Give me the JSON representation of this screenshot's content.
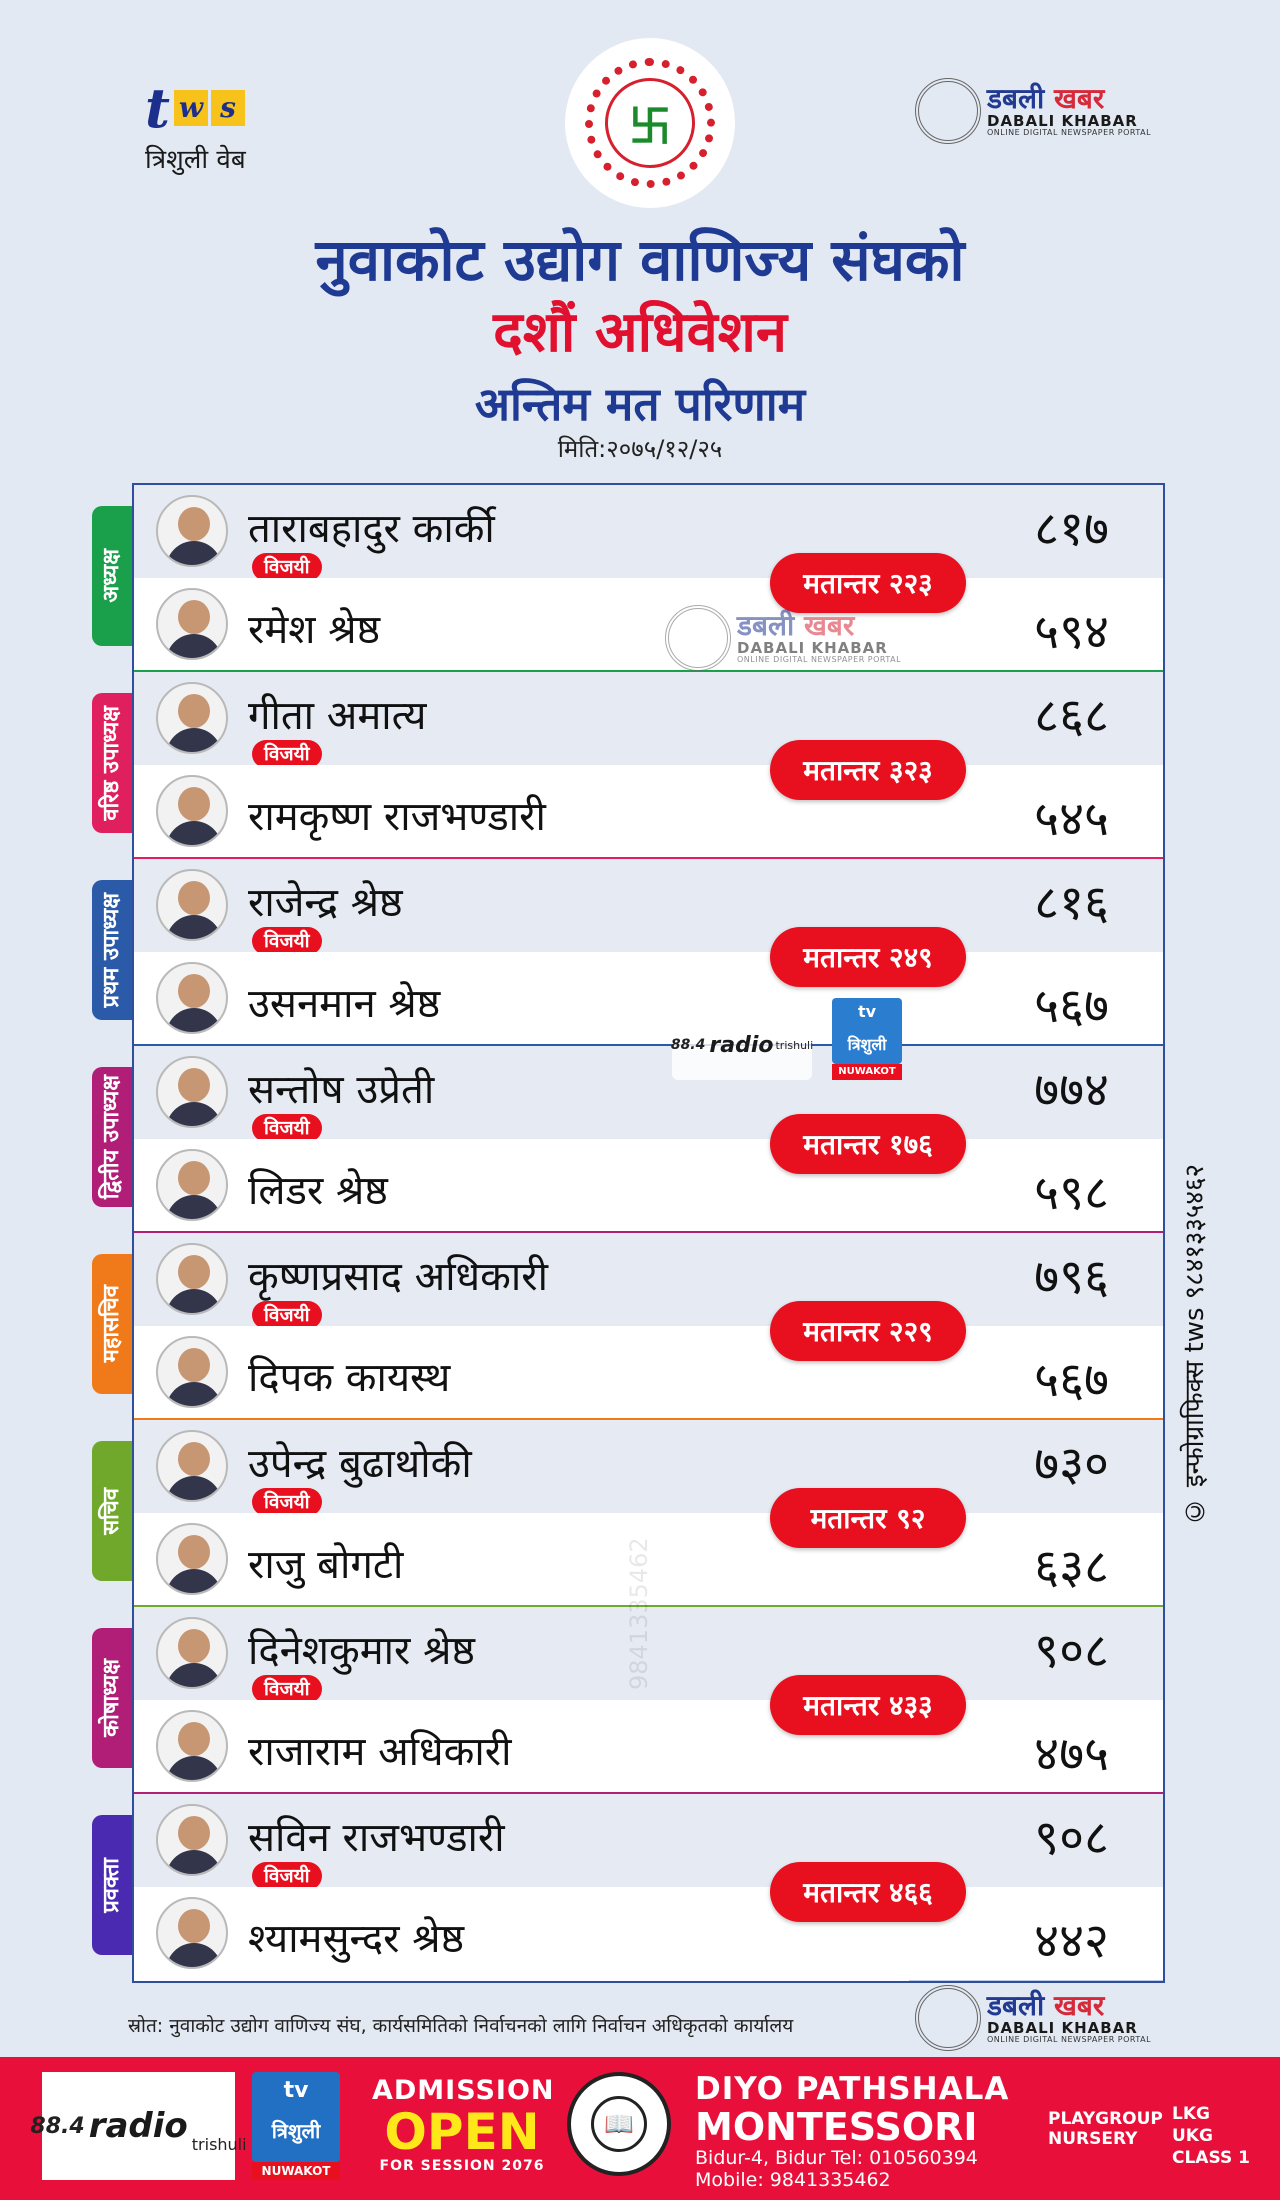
{
  "header": {
    "tws_letters": [
      "t",
      "w",
      "s"
    ],
    "tws_sub": "त्रिशुली वेब",
    "emblem_symbol": "卐",
    "dabali_np_1": "डबली",
    "dabali_np_2": "खबर",
    "dabali_en": "DABALI KHABAR",
    "dabali_tag": "ONLINE DIGITAL NEWSPAPER PORTAL",
    "title_main": "नुवाकोट उद्योग वाणिज्य संघको",
    "title_sub": "दशौं अधिवेशन",
    "title_result": "अन्तिम मत परिणाम",
    "title_date": "मिति:२०७५/१२/२५"
  },
  "labels": {
    "winner_badge": "विजयी"
  },
  "positions": [
    {
      "title": "अध्यक्ष",
      "color": "#1aa04a",
      "winner": {
        "name": "ताराबहादुर कार्की",
        "votes": "८१७"
      },
      "loser": {
        "name": "रमेश श्रेष्ठ",
        "votes": "५९४"
      },
      "margin": "मतान्तर २२३"
    },
    {
      "title": "वरिष्ठ उपाध्यक्ष",
      "color": "#e0205e",
      "winner": {
        "name": "गीता अमात्य",
        "votes": "८६८"
      },
      "loser": {
        "name": "रामकृष्ण राजभण्डारी",
        "votes": "५४५"
      },
      "margin": "मतान्तर ३२३"
    },
    {
      "title": "प्रथम उपाध्यक्ष",
      "color": "#2a5aa8",
      "winner": {
        "name": "राजेन्द्र श्रेष्ठ",
        "votes": "८१६"
      },
      "loser": {
        "name": "उसनमान श्रेष्ठ",
        "votes": "५६७"
      },
      "margin": "मतान्तर २४९"
    },
    {
      "title": "द्वितीय उपाध्यक्ष",
      "color": "#b01e78",
      "winner": {
        "name": "सन्तोष उप्रेती",
        "votes": "७७४"
      },
      "loser": {
        "name": "लिडर श्रेष्ठ",
        "votes": "५९८"
      },
      "margin": "मतान्तर १७६"
    },
    {
      "title": "महासचिव",
      "color": "#f07a1a",
      "winner": {
        "name": "कृष्णप्रसाद अधिकारी",
        "votes": "७९६"
      },
      "loser": {
        "name": "दिपक कायस्थ",
        "votes": "५६७"
      },
      "margin": "मतान्तर २२९"
    },
    {
      "title": "सचिव",
      "color": "#6fa82a",
      "winner": {
        "name": "उपेन्द्र बुढाथोकी",
        "votes": "७३०"
      },
      "loser": {
        "name": "राजु बोगटी",
        "votes": "६३८"
      },
      "margin": "मतान्तर ९२"
    },
    {
      "title": "कोषाध्यक्ष",
      "color": "#b01e78",
      "winner": {
        "name": "दिनेशकुमार श्रेष्ठ",
        "votes": "९०८"
      },
      "loser": {
        "name": "राजाराम अधिकारी",
        "votes": "४७५"
      },
      "margin": "मतान्तर ४३३"
    },
    {
      "title": "प्रवक्ता",
      "color": "#4a2ab0",
      "winner": {
        "name": "सविन राजभण्डारी",
        "votes": "९०८"
      },
      "loser": {
        "name": "श्यामसुन्दर श्रेष्ठ",
        "votes": "४४२"
      },
      "margin": "मतान्तर ४६६"
    }
  ],
  "watermark_phone": "9841335462",
  "side_credit": "© इन्फोग्राफिक्स tws ९८४१३३५४६२",
  "source": "स्रोत: नुवाकोट उद्योग वाणिज्य संघ, कार्यसमितिको निर्वाचनको लागि निर्वाचन अधिकृतको कार्यालय",
  "footer": {
    "radio_freq": "88.4",
    "radio_word": "radio",
    "radio_name": "trishuli",
    "tv_label": "tv",
    "tv_name": "त्रिशुली",
    "tv_place": "NUWAKOT",
    "admission_1": "ADMISSION",
    "admission_2": "OPEN",
    "admission_3": "FOR SESSION 2076",
    "school_1": "DIYO PATHSHALA",
    "school_2": "MONTESSORI",
    "school_address": "Bidur-4, Bidur   Tel: 010560394",
    "school_mobile": "Mobile: 9841335462",
    "grades_left": [
      "PLAYGROUP",
      "NURSERY"
    ],
    "grades_right": [
      "LKG",
      "UKG",
      "CLASS 1"
    ]
  }
}
